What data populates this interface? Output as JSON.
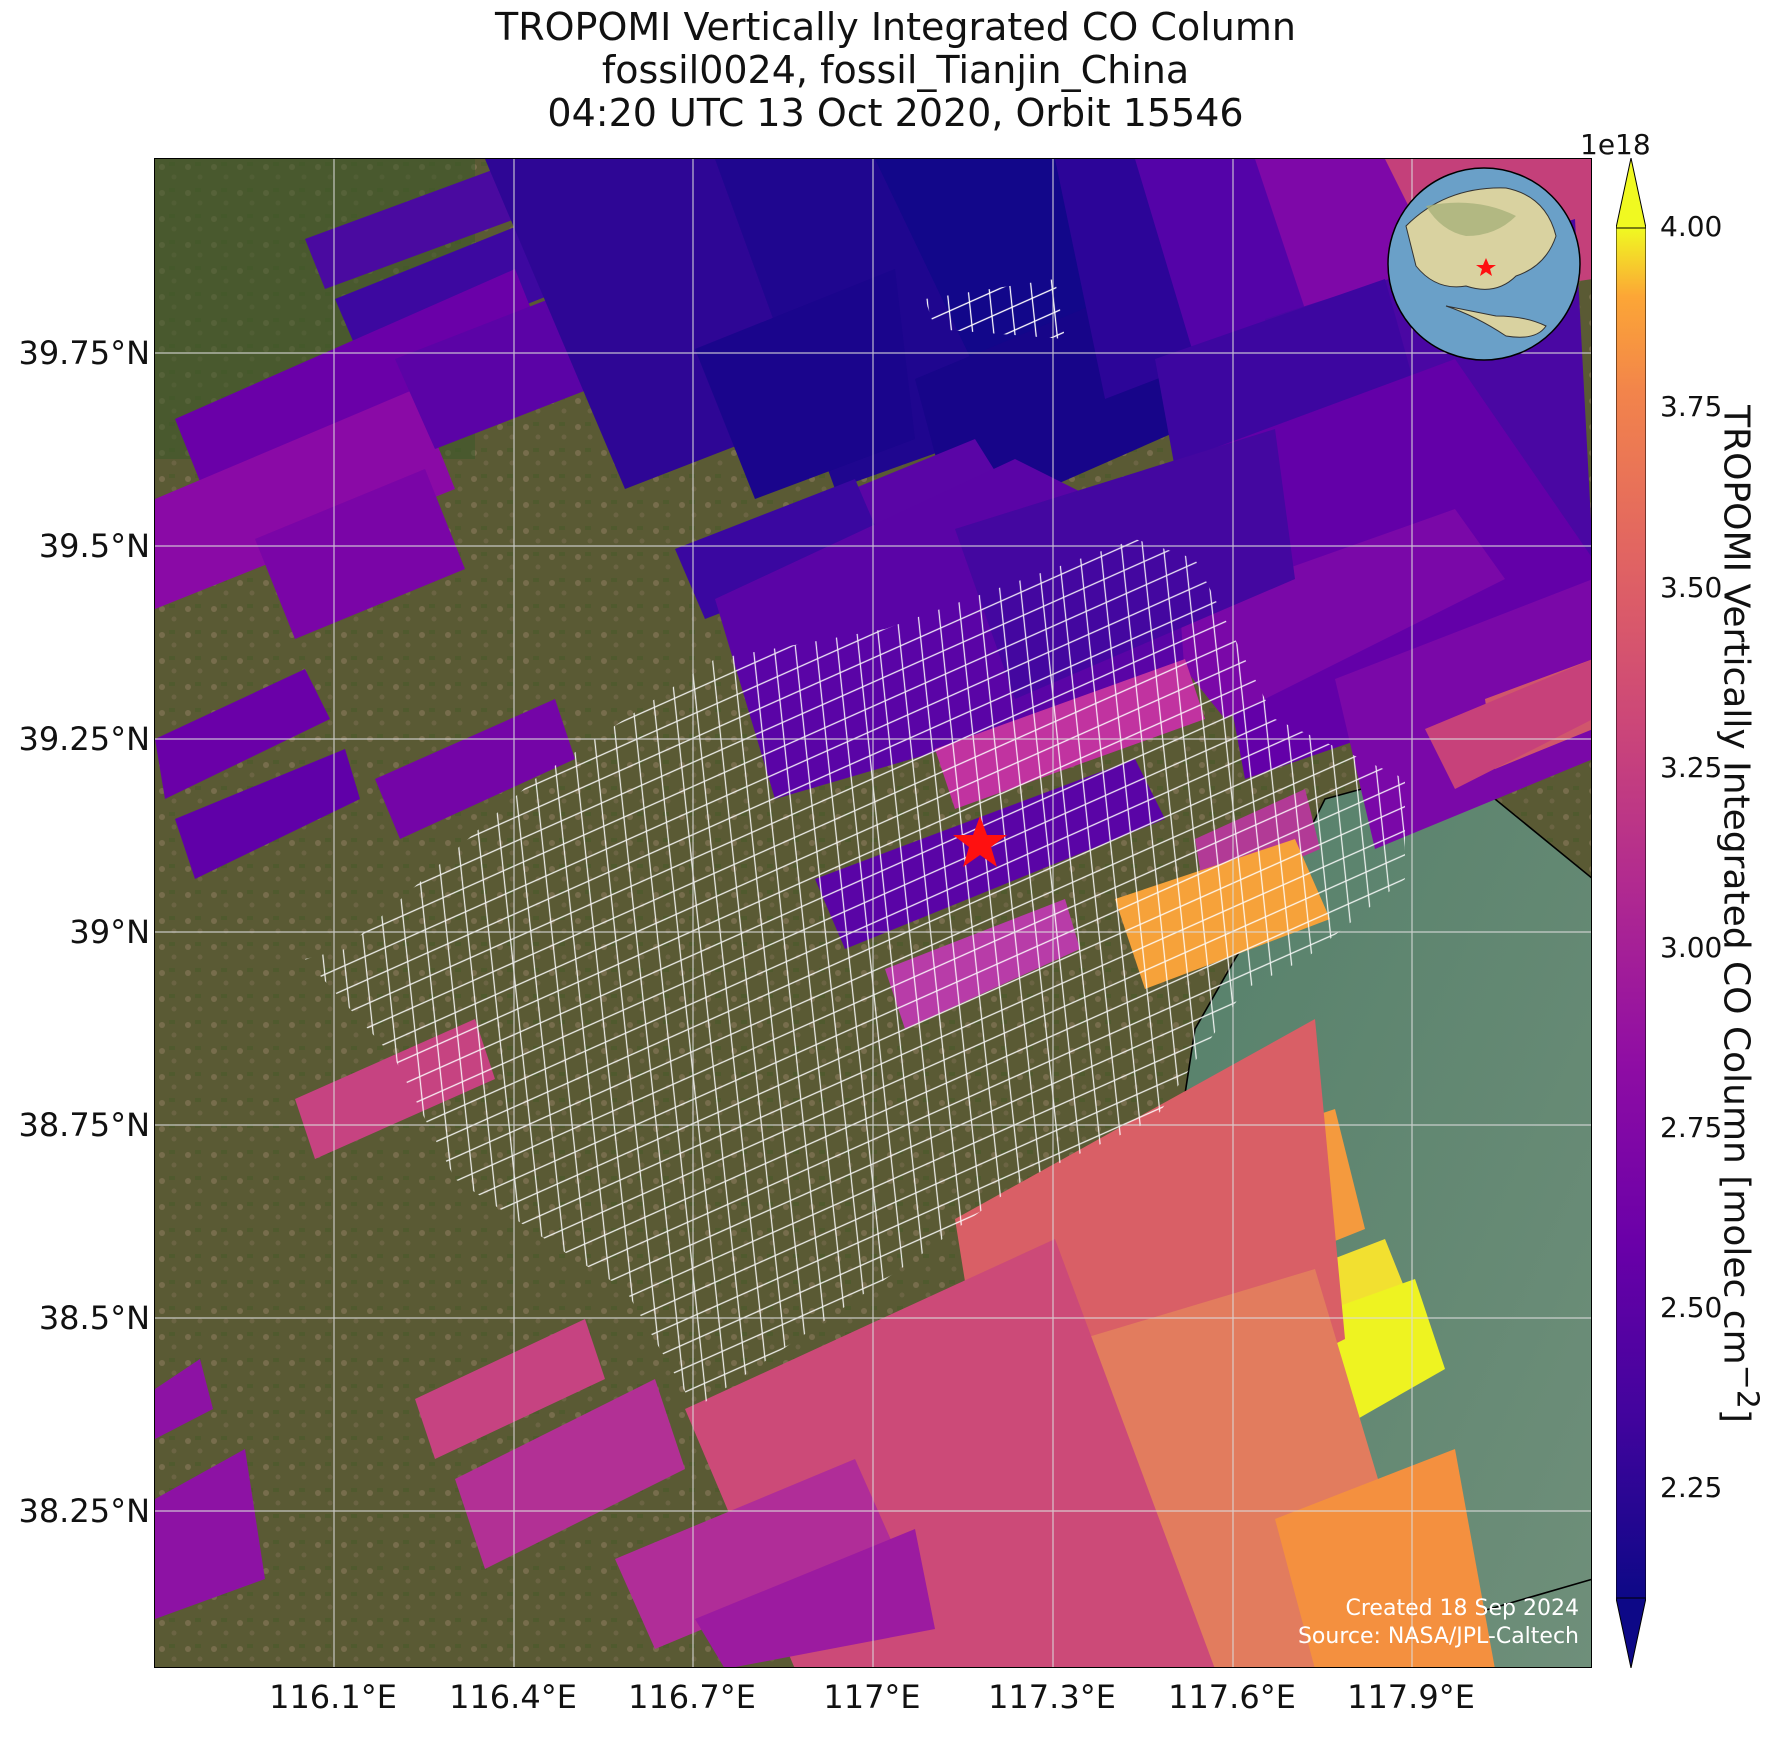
{
  "title": {
    "line1": "TROPOMI Vertically Integrated CO Column",
    "line2": "fossil0024, fossil_Tianjin_China",
    "line3": "04:20 UTC 13 Oct 2020, Orbit 15546"
  },
  "map": {
    "lon_range": [
      115.78,
      118.18
    ],
    "lat_range": [
      38.04,
      40.0
    ],
    "lon_ticks": [
      "116.1°E",
      "116.4°E",
      "116.7°E",
      "117°E",
      "117.3°E",
      "117.6°E",
      "117.9°E"
    ],
    "lon_tick_values": [
      116.1,
      116.4,
      116.7,
      117.0,
      117.3,
      117.6,
      117.9
    ],
    "lat_ticks": [
      "39.75°N",
      "39.5°N",
      "39.25°N",
      "39°N",
      "38.75°N",
      "38.5°N",
      "38.25°N"
    ],
    "lat_tick_values": [
      39.75,
      39.5,
      39.25,
      39.0,
      38.75,
      38.5,
      38.25
    ],
    "grid": true,
    "basemap": "satellite imagery",
    "site_marker": {
      "lon": 117.16,
      "lat": 39.14,
      "symbol": "red-star"
    },
    "credit_line1": "Created 18 Sep 2024",
    "credit_line2": "Source: NASA/JPL-Caltech",
    "inset_globe": {
      "symbol": "red-star",
      "position": "top-right"
    }
  },
  "colorbar": {
    "exponent_label": "1e18",
    "label": "TROPOMI Vertically Integrated CO Column [molec cm",
    "label_sup": "−2",
    "label_end": "]",
    "range": [
      2.1,
      4.0
    ],
    "ticks": [
      "4.00",
      "3.75",
      "3.50",
      "3.25",
      "3.00",
      "2.75",
      "2.50",
      "2.25"
    ],
    "tick_values": [
      4.0,
      3.75,
      3.5,
      3.25,
      3.0,
      2.75,
      2.5,
      2.25
    ],
    "colormap": "plasma",
    "extend": "both"
  }
}
